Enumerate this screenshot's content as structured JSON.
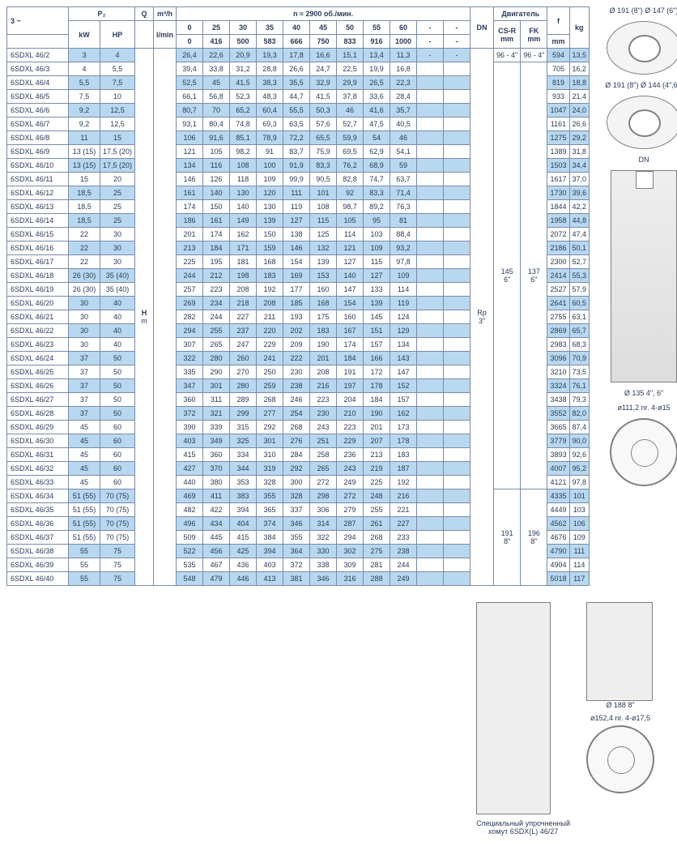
{
  "header": {
    "phase": "3 ~",
    "p2": "P₂",
    "kw": "kW",
    "hp": "HP",
    "q": "Q",
    "m3h": "m³/h",
    "lmin": "l/min",
    "n_label": "n ≈ 2900 об./мин.",
    "dn": "DN",
    "motor": "Двигатель",
    "csr": "CS-R\nmm",
    "fk": "FK\nmm",
    "f": "f",
    "f_mm": "mm",
    "kg": "kg",
    "h": "H",
    "m": "m",
    "rp": "Rp\n3\"",
    "q_cols": [
      "0",
      "25",
      "30",
      "35",
      "40",
      "45",
      "50",
      "55",
      "60",
      "-",
      "-"
    ],
    "lmin_row": [
      "0",
      "416",
      "500",
      "583",
      "666",
      "750",
      "833",
      "916",
      "1000",
      "-",
      "-"
    ]
  },
  "motor_blocks": [
    {
      "csr": "96 - 4\"",
      "fk": "96 - 4\""
    },
    {
      "csr": "145\n6\"",
      "fk": "137\n6\""
    },
    {
      "csr": "191\n8\"",
      "fk": "196\n8\""
    }
  ],
  "rows": [
    {
      "m": "6SDXL 46/2",
      "kw": "3",
      "hp": "4",
      "v": [
        "26,4",
        "22,6",
        "20,9",
        "19,3",
        "17,8",
        "16,6",
        "15,1",
        "13,4",
        "11,3",
        "-",
        "-"
      ],
      "f": "594",
      "kg": "13,5"
    },
    {
      "m": "6SDXL 46/3",
      "kw": "4",
      "hp": "5,5",
      "v": [
        "39,4",
        "33,8",
        "31,2",
        "28,8",
        "26,6",
        "24,7",
        "22,5",
        "19,9",
        "16,8",
        "",
        ""
      ],
      "f": "705",
      "kg": "16,2"
    },
    {
      "m": "6SDXL 46/4",
      "kw": "5,5",
      "hp": "7,5",
      "v": [
        "52,5",
        "45",
        "41,5",
        "38,3",
        "35,5",
        "32,9",
        "29,9",
        "26,5",
        "22,3",
        "",
        ""
      ],
      "f": "819",
      "kg": "18,8"
    },
    {
      "m": "6SDXL 46/5",
      "kw": "7,5",
      "hp": "10",
      "v": [
        "66,1",
        "56,8",
        "52,3",
        "48,3",
        "44,7",
        "41,5",
        "37,8",
        "33,6",
        "28,4",
        "",
        ""
      ],
      "f": "933",
      "kg": "21,4"
    },
    {
      "m": "6SDXL 46/6",
      "kw": "9,2",
      "hp": "12,5",
      "v": [
        "80,7",
        "70",
        "65,2",
        "60,4",
        "55,5",
        "50,3",
        "46",
        "41,6",
        "35,7",
        "",
        ""
      ],
      "f": "1047",
      "kg": "24,0"
    },
    {
      "m": "6SDXL 46/7",
      "kw": "9,2",
      "hp": "12,5",
      "v": [
        "93,1",
        "80,4",
        "74,8",
        "69,3",
        "63,5",
        "57,6",
        "52,7",
        "47,5",
        "40,5",
        "",
        ""
      ],
      "f": "1161",
      "kg": "26,6"
    },
    {
      "m": "6SDXL 46/8",
      "kw": "11",
      "hp": "15",
      "v": [
        "106",
        "91,6",
        "85,1",
        "78,9",
        "72,2",
        "65,5",
        "59,9",
        "54",
        "46",
        "",
        ""
      ],
      "f": "1275",
      "kg": "29,2"
    },
    {
      "m": "6SDXL 46/9",
      "kw": "13 (15)",
      "hp": "17,5 (20)",
      "v": [
        "121",
        "105",
        "98,2",
        "91",
        "83,7",
        "75,9",
        "69,5",
        "62,9",
        "54,1",
        "",
        ""
      ],
      "f": "1389",
      "kg": "31,8"
    },
    {
      "m": "6SDXL 46/10",
      "kw": "13 (15)",
      "hp": "17,5 (20)",
      "v": [
        "134",
        "116",
        "108",
        "100",
        "91,9",
        "83,3",
        "76,2",
        "68,9",
        "59",
        "",
        ""
      ],
      "f": "1503",
      "kg": "34,4"
    },
    {
      "m": "6SDXL 46/11",
      "kw": "15",
      "hp": "20",
      "v": [
        "146",
        "126",
        "118",
        "109",
        "99,9",
        "90,5",
        "82,8",
        "74,7",
        "63,7",
        "",
        ""
      ],
      "f": "1617",
      "kg": "37,0"
    },
    {
      "m": "6SDXL 46/12",
      "kw": "18,5",
      "hp": "25",
      "v": [
        "161",
        "140",
        "130",
        "120",
        "111",
        "101",
        "92",
        "83,3",
        "71,4",
        "",
        ""
      ],
      "f": "1730",
      "kg": "39,6"
    },
    {
      "m": "6SDXL 46/13",
      "kw": "18,5",
      "hp": "25",
      "v": [
        "174",
        "150",
        "140",
        "130",
        "119",
        "108",
        "98,7",
        "89,2",
        "76,3",
        "",
        ""
      ],
      "f": "1844",
      "kg": "42,2"
    },
    {
      "m": "6SDXL 46/14",
      "kw": "18,5",
      "hp": "25",
      "v": [
        "186",
        "161",
        "149",
        "139",
        "127",
        "115",
        "105",
        "95",
        "81",
        "",
        ""
      ],
      "f": "1958",
      "kg": "44,8"
    },
    {
      "m": "6SDXL 46/15",
      "kw": "22",
      "hp": "30",
      "v": [
        "201",
        "174",
        "162",
        "150",
        "138",
        "125",
        "114",
        "103",
        "88,4",
        "",
        ""
      ],
      "f": "2072",
      "kg": "47,4"
    },
    {
      "m": "6SDXL 46/16",
      "kw": "22",
      "hp": "30",
      "v": [
        "213",
        "184",
        "171",
        "159",
        "146",
        "132",
        "121",
        "109",
        "93,2",
        "",
        ""
      ],
      "f": "2186",
      "kg": "50,1"
    },
    {
      "m": "6SDXL 46/17",
      "kw": "22",
      "hp": "30",
      "v": [
        "225",
        "195",
        "181",
        "168",
        "154",
        "139",
        "127",
        "115",
        "97,8",
        "",
        ""
      ],
      "f": "2300",
      "kg": "52,7"
    },
    {
      "m": "6SDXL 46/18",
      "kw": "26 (30)",
      "hp": "35 (40)",
      "v": [
        "244",
        "212",
        "198",
        "183",
        "169",
        "153",
        "140",
        "127",
        "109",
        "",
        ""
      ],
      "f": "2414",
      "kg": "55,3"
    },
    {
      "m": "6SDXL 46/19",
      "kw": "26 (30)",
      "hp": "35 (40)",
      "v": [
        "257",
        "223",
        "208",
        "192",
        "177",
        "160",
        "147",
        "133",
        "114",
        "",
        ""
      ],
      "f": "2527",
      "kg": "57,9"
    },
    {
      "m": "6SDXL 46/20",
      "kw": "30",
      "hp": "40",
      "v": [
        "269",
        "234",
        "218",
        "208",
        "185",
        "168",
        "154",
        "139",
        "119",
        "",
        ""
      ],
      "f": "2641",
      "kg": "60,5"
    },
    {
      "m": "6SDXL 46/21",
      "kw": "30",
      "hp": "40",
      "v": [
        "282",
        "244",
        "227",
        "211",
        "193",
        "175",
        "160",
        "145",
        "124",
        "",
        ""
      ],
      "f": "2755",
      "kg": "63,1"
    },
    {
      "m": "6SDXL 46/22",
      "kw": "30",
      "hp": "40",
      "v": [
        "294",
        "255",
        "237",
        "220",
        "202",
        "183",
        "167",
        "151",
        "129",
        "",
        ""
      ],
      "f": "2869",
      "kg": "65,7"
    },
    {
      "m": "6SDXL 46/23",
      "kw": "30",
      "hp": "40",
      "v": [
        "307",
        "265",
        "247",
        "229",
        "209",
        "190",
        "174",
        "157",
        "134",
        "",
        ""
      ],
      "f": "2983",
      "kg": "68,3"
    },
    {
      "m": "6SDXL 46/24",
      "kw": "37",
      "hp": "50",
      "v": [
        "322",
        "280",
        "260",
        "241",
        "222",
        "201",
        "184",
        "166",
        "143",
        "",
        ""
      ],
      "f": "3096",
      "kg": "70,9"
    },
    {
      "m": "6SDXL 46/25",
      "kw": "37",
      "hp": "50",
      "v": [
        "335",
        "290",
        "270",
        "250",
        "230",
        "208",
        "191",
        "172",
        "147",
        "",
        ""
      ],
      "f": "3210",
      "kg": "73,5"
    },
    {
      "m": "6SDXL 46/26",
      "kw": "37",
      "hp": "50",
      "v": [
        "347",
        "301",
        "280",
        "259",
        "238",
        "216",
        "197",
        "178",
        "152",
        "",
        ""
      ],
      "f": "3324",
      "kg": "76,1"
    },
    {
      "m": "6SDXL 46/27",
      "kw": "37",
      "hp": "50",
      "v": [
        "360",
        "311",
        "289",
        "268",
        "246",
        "223",
        "204",
        "184",
        "157",
        "",
        ""
      ],
      "f": "3438",
      "kg": "79,3"
    },
    {
      "m": "6SDXL 46/28",
      "kw": "37",
      "hp": "50",
      "v": [
        "372",
        "321",
        "299",
        "277",
        "254",
        "230",
        "210",
        "190",
        "162",
        "",
        ""
      ],
      "f": "3552",
      "kg": "82,0"
    },
    {
      "m": "6SDXL 46/29",
      "kw": "45",
      "hp": "60",
      "v": [
        "390",
        "339",
        "315",
        "292",
        "268",
        "243",
        "223",
        "201",
        "173",
        "",
        ""
      ],
      "f": "3665",
      "kg": "87,4"
    },
    {
      "m": "6SDXL 46/30",
      "kw": "45",
      "hp": "60",
      "v": [
        "403",
        "349",
        "325",
        "301",
        "276",
        "251",
        "229",
        "207",
        "178",
        "",
        ""
      ],
      "f": "3779",
      "kg": "90,0"
    },
    {
      "m": "6SDXL 46/31",
      "kw": "45",
      "hp": "60",
      "v": [
        "415",
        "360",
        "334",
        "310",
        "284",
        "258",
        "236",
        "213",
        "183",
        "",
        ""
      ],
      "f": "3893",
      "kg": "92,6"
    },
    {
      "m": "6SDXL 46/32",
      "kw": "45",
      "hp": "60",
      "v": [
        "427",
        "370",
        "344",
        "319",
        "292",
        "265",
        "243",
        "219",
        "187",
        "",
        ""
      ],
      "f": "4007",
      "kg": "95,2"
    },
    {
      "m": "6SDXL 46/33",
      "kw": "45",
      "hp": "60",
      "v": [
        "440",
        "380",
        "353",
        "328",
        "300",
        "272",
        "249",
        "225",
        "192",
        "",
        ""
      ],
      "f": "4121",
      "kg": "97,8"
    },
    {
      "m": "6SDXL 46/34",
      "kw": "51 (55)",
      "hp": "70 (75)",
      "v": [
        "469",
        "411",
        "383",
        "355",
        "328",
        "298",
        "272",
        "248",
        "216",
        "",
        ""
      ],
      "f": "4335",
      "kg": "101"
    },
    {
      "m": "6SDXL 46/35",
      "kw": "51 (55)",
      "hp": "70 (75)",
      "v": [
        "482",
        "422",
        "394",
        "365",
        "337",
        "306",
        "279",
        "255",
        "221",
        "",
        ""
      ],
      "f": "4449",
      "kg": "103"
    },
    {
      "m": "6SDXL 46/36",
      "kw": "51 (55)",
      "hp": "70 (75)",
      "v": [
        "496",
        "434",
        "404",
        "374",
        "346",
        "314",
        "287",
        "261",
        "227",
        "",
        ""
      ],
      "f": "4562",
      "kg": "106"
    },
    {
      "m": "6SDXL 46/37",
      "kw": "51 (55)",
      "hp": "70 (75)",
      "v": [
        "509",
        "445",
        "415",
        "384",
        "355",
        "322",
        "294",
        "268",
        "233",
        "",
        ""
      ],
      "f": "4676",
      "kg": "109"
    },
    {
      "m": "6SDXL 46/38",
      "kw": "55",
      "hp": "75",
      "v": [
        "522",
        "456",
        "425",
        "394",
        "364",
        "330",
        "302",
        "275",
        "238",
        "",
        ""
      ],
      "f": "4790",
      "kg": "111"
    },
    {
      "m": "6SDXL 46/39",
      "kw": "55",
      "hp": "75",
      "v": [
        "535",
        "467",
        "436",
        "403",
        "372",
        "338",
        "309",
        "281",
        "244",
        "",
        ""
      ],
      "f": "4904",
      "kg": "114"
    },
    {
      "m": "6SDXL 46/40",
      "kw": "55",
      "hp": "75",
      "v": [
        "548",
        "479",
        "446",
        "413",
        "381",
        "346",
        "316",
        "288",
        "249",
        "",
        ""
      ],
      "f": "5018",
      "kg": "117"
    }
  ],
  "drawings": {
    "ring1": "Ø 191 (8\")  Ø 147 (6\")",
    "ring2": "Ø 191 (8\")  Ø 144 (4\",6\")",
    "dn": "DN",
    "pump_dim": "Ø 135  4\", 6\"",
    "flange1": "ø111,2  nr. 4-ø15",
    "pump3_dim": "Ø 188  8\"",
    "flange2": "ø152,4  nr. 4-ø17,5",
    "caption": "Специальный упрочненный\nхомут 6SDX(L) 46/27"
  }
}
